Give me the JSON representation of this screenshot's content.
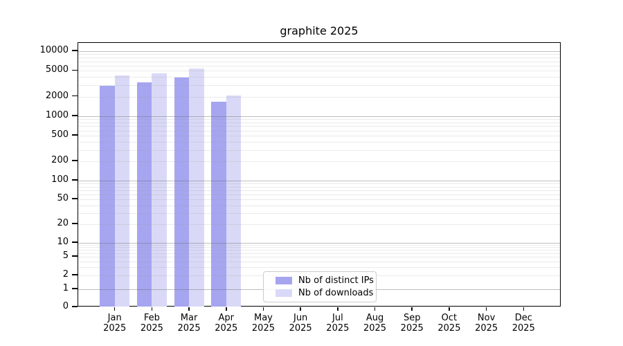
{
  "chart_data": {
    "type": "bar",
    "title": "graphite 2025",
    "categories": [
      "Jan",
      "Feb",
      "Mar",
      "Apr",
      "May",
      "Jun",
      "Jul",
      "Aug",
      "Sep",
      "Oct",
      "Nov",
      "Dec"
    ],
    "category_year": "2025",
    "series": [
      {
        "name": "Nb of distinct IPs",
        "color": "#a5a5f0",
        "values": [
          2870,
          3240,
          3850,
          1630,
          null,
          null,
          null,
          null,
          null,
          null,
          null,
          null
        ]
      },
      {
        "name": "Nb of downloads",
        "color": "#d9d9f7",
        "values": [
          4140,
          4460,
          5290,
          2040,
          null,
          null,
          null,
          null,
          null,
          null,
          null,
          null
        ]
      }
    ],
    "xlabel": "",
    "ylabel": "",
    "yaxis": {
      "scale": "symlog",
      "tick_labels": [
        "0",
        "1",
        "2",
        "5",
        "10",
        "20",
        "50",
        "100",
        "200",
        "500",
        "1000",
        "2000",
        "5000",
        "10000"
      ],
      "tick_values": [
        0,
        1,
        2,
        5,
        10,
        20,
        50,
        100,
        200,
        500,
        1000,
        2000,
        5000,
        10000
      ],
      "ylim": [
        0,
        13400
      ],
      "major_grid_values": [
        1,
        10,
        100,
        1000,
        10000
      ],
      "grid": "on"
    },
    "legend": {
      "position": "lower-center",
      "entries": [
        "Nb of distinct IPs",
        "Nb of downloads"
      ]
    }
  },
  "colors": {
    "background": "#ffffff",
    "bar_distinct_ips": "#a5a5f0",
    "bar_downloads": "#d9d9f7",
    "axis": "#000000",
    "major_grid": "#b3b3b3",
    "minor_grid": "#e9e9e9",
    "legend_border": "#cccccc"
  }
}
